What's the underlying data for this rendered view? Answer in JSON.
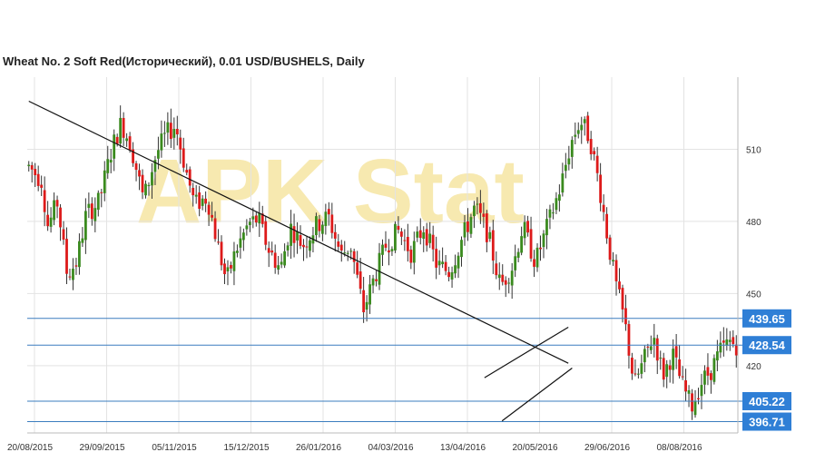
{
  "chart_data": {
    "type": "candlestick",
    "title": "Wheat  No. 2 Soft Red(Исторический), 0.01 USD/BUSHELS, Daily",
    "watermark": "APK Stat",
    "colors": {
      "up": "#3a8a1e",
      "down": "#dd1a1a",
      "level_line": "#3b7dbf",
      "level_box": "#2f7fd6",
      "trend": "#111111",
      "watermark": "#f7e9b0"
    },
    "y_axis": {
      "min": 392,
      "max": 540,
      "ticks": [
        420,
        450,
        480,
        510
      ],
      "position": "right"
    },
    "x_labels": [
      "20/08/2015",
      "29/09/2015",
      "05/11/2015",
      "15/12/2015",
      "26/01/2016",
      "04/03/2016",
      "13/04/2016",
      "20/05/2016",
      "29/06/2016",
      "08/08/2016"
    ],
    "levels": [
      {
        "value": 439.65,
        "label": "439.65"
      },
      {
        "value": 428.54,
        "label": "428.54"
      },
      {
        "value": 405.22,
        "label": "405.22"
      },
      {
        "value": 396.71,
        "label": "396.71"
      }
    ],
    "trendlines": [
      {
        "name": "long-downtrend",
        "from": [
          0.0,
          530.0
        ],
        "to": [
          169.3,
          421.0
        ]
      },
      {
        "name": "channel-upper",
        "from": [
          143.0,
          415.0
        ],
        "to": [
          169.3,
          436.0
        ]
      },
      {
        "name": "channel-lower",
        "from": [
          148.5,
          397.0
        ],
        "to": [
          170.5,
          419.0
        ]
      }
    ],
    "price_anchors": [
      [
        0,
        503
      ],
      [
        4,
        497
      ],
      [
        6,
        478
      ],
      [
        9,
        488
      ],
      [
        12,
        458
      ],
      [
        15,
        463
      ],
      [
        18,
        483
      ],
      [
        22,
        488
      ],
      [
        26,
        510
      ],
      [
        29,
        521
      ],
      [
        32,
        512
      ],
      [
        36,
        489
      ],
      [
        40,
        508
      ],
      [
        43,
        516
      ],
      [
        46,
        520
      ],
      [
        49,
        503
      ],
      [
        52,
        487
      ],
      [
        56,
        490
      ],
      [
        59,
        472
      ],
      [
        62,
        455
      ],
      [
        65,
        468
      ],
      [
        69,
        479
      ],
      [
        72,
        481
      ],
      [
        75,
        469
      ],
      [
        79,
        460
      ],
      [
        82,
        478
      ],
      [
        86,
        470
      ],
      [
        90,
        478
      ],
      [
        94,
        482
      ],
      [
        98,
        466
      ],
      [
        101,
        470
      ],
      [
        105,
        443
      ],
      [
        108,
        455
      ],
      [
        112,
        470
      ],
      [
        116,
        476
      ],
      [
        120,
        467
      ],
      [
        124,
        478
      ],
      [
        128,
        462
      ],
      [
        132,
        459
      ],
      [
        136,
        473
      ],
      [
        140,
        486
      ],
      [
        144,
        475
      ],
      [
        148,
        453
      ],
      [
        152,
        462
      ],
      [
        155,
        478
      ],
      [
        159,
        463
      ],
      [
        163,
        479
      ],
      [
        167,
        495
      ],
      [
        170,
        512
      ],
      [
        173,
        522
      ],
      [
        176,
        515
      ],
      [
        179,
        495
      ],
      [
        182,
        470
      ],
      [
        184,
        455
      ],
      [
        187,
        438
      ],
      [
        190,
        412
      ],
      [
        193,
        422
      ],
      [
        196,
        433
      ],
      [
        199,
        416
      ],
      [
        202,
        425
      ],
      [
        205,
        412
      ],
      [
        208,
        403
      ],
      [
        211,
        413
      ],
      [
        214,
        418
      ],
      [
        217,
        426
      ],
      [
        220,
        430
      ],
      [
        223,
        428
      ]
    ]
  }
}
